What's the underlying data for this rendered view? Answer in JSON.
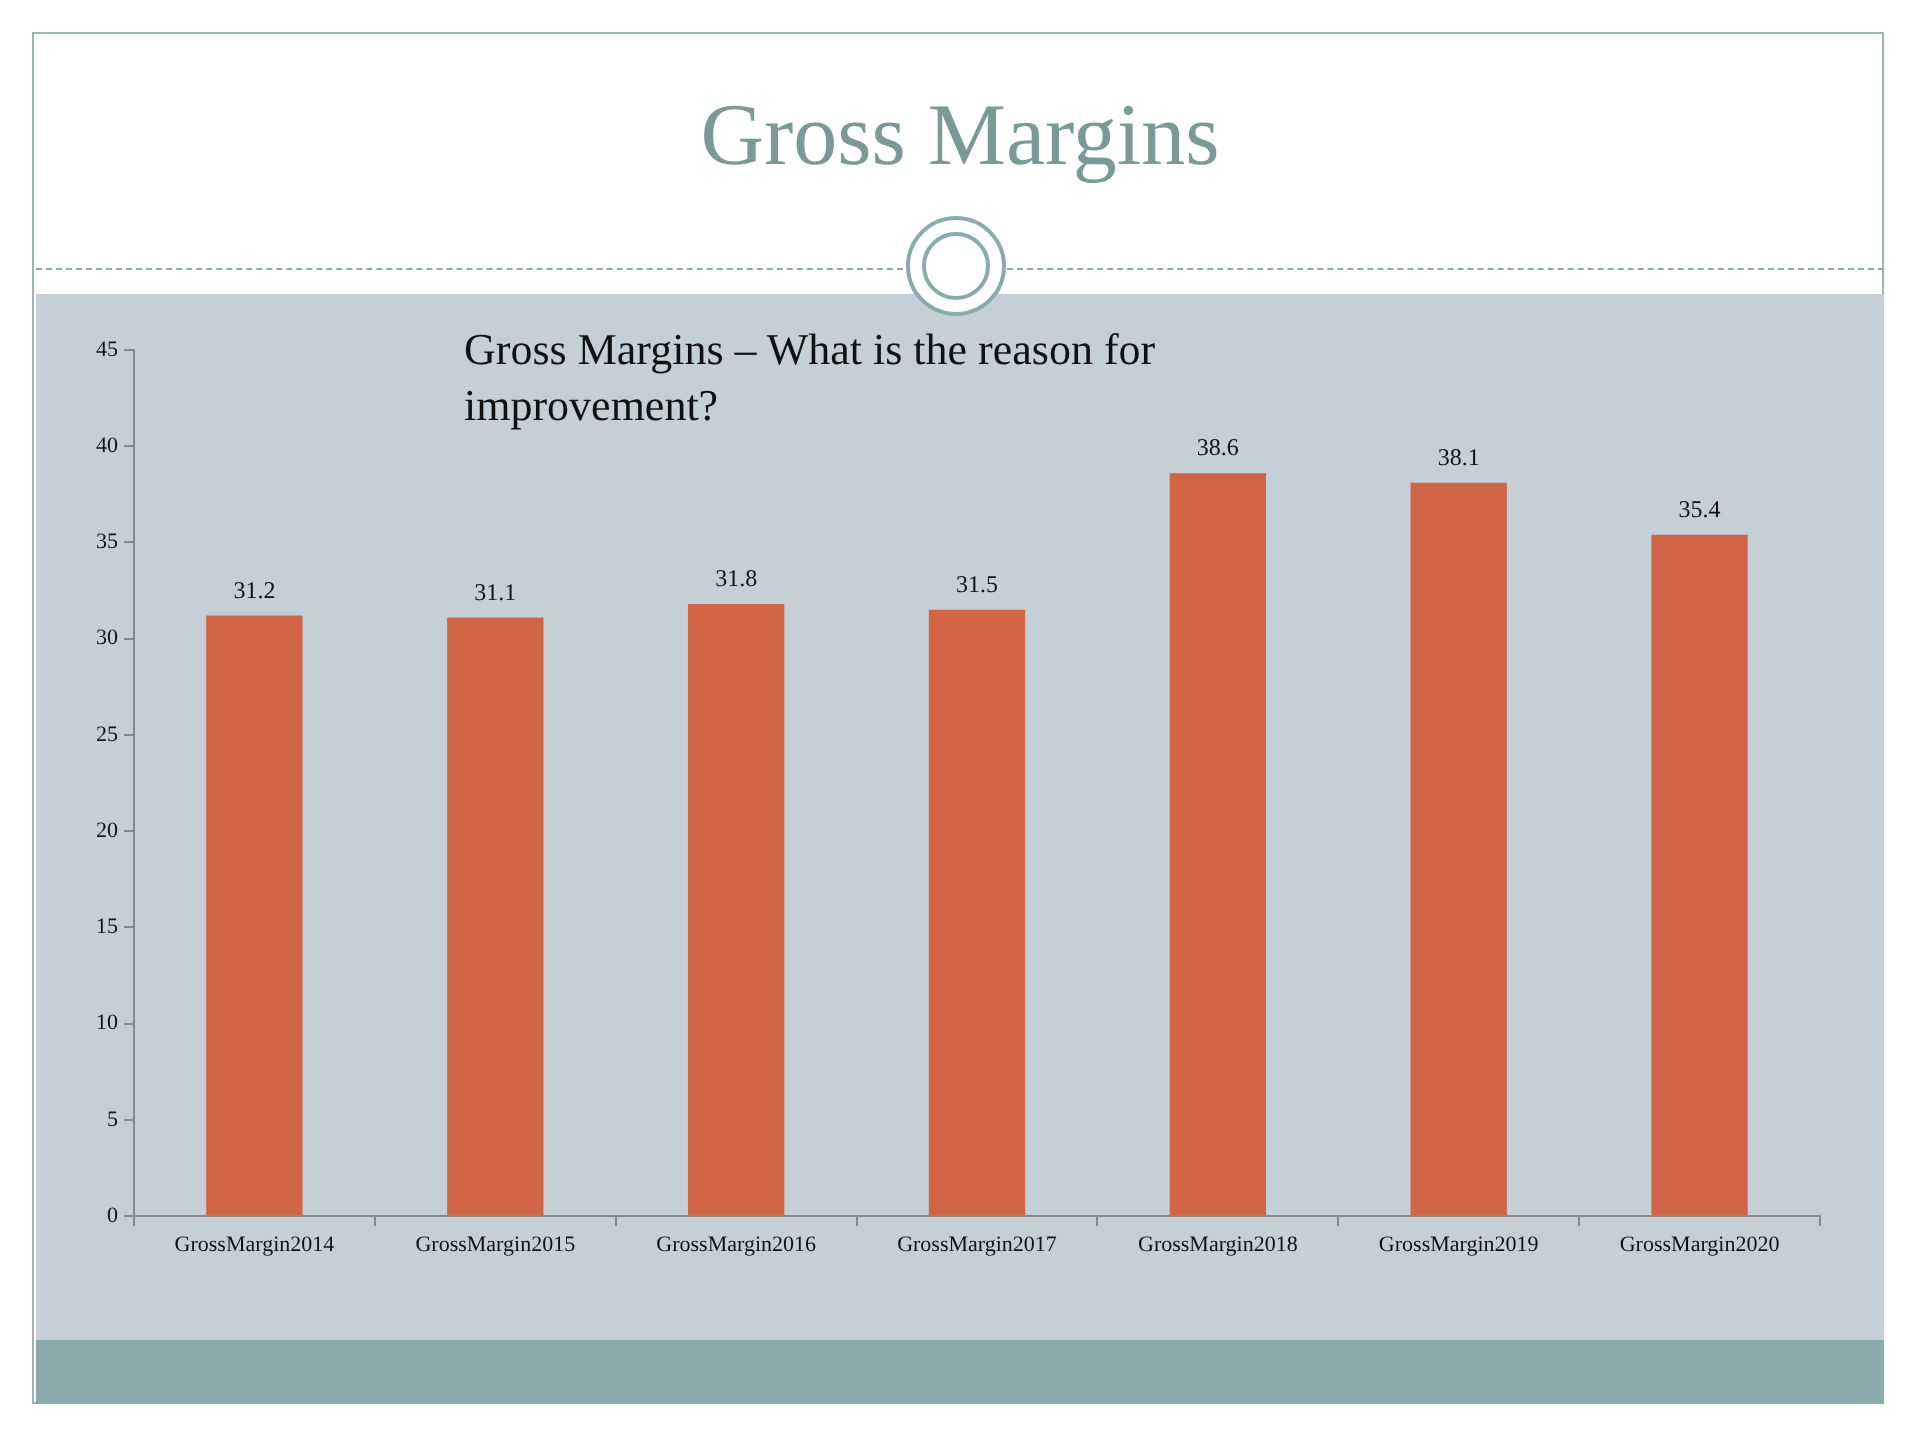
{
  "chart_data": {
    "type": "bar",
    "title": "Gross Margins",
    "subtitle": "Gross Margins – What is the reason for improvement?",
    "categories": [
      "GrossMargin2014",
      "GrossMargin2015",
      "GrossMargin2016",
      "GrossMargin2017",
      "GrossMargin2018",
      "GrossMargin2019",
      "GrossMargin2020"
    ],
    "values": [
      31.2,
      31.1,
      31.8,
      31.5,
      38.6,
      38.1,
      35.4
    ],
    "color": "#d26446",
    "ylim": [
      0,
      45
    ],
    "yticks": [
      0,
      5,
      10,
      15,
      20,
      25,
      30,
      35,
      40,
      45
    ],
    "grid": false,
    "legend": false,
    "data_labels": true
  }
}
